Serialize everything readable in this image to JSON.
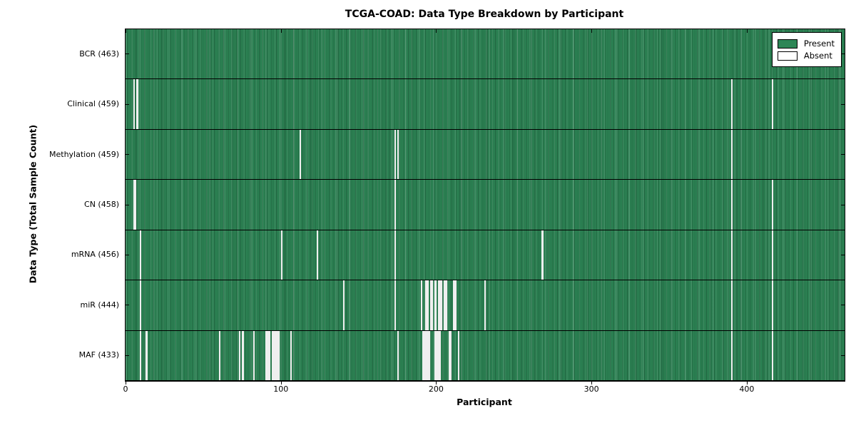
{
  "title": "TCGA-COAD: Data Type Breakdown by Participant",
  "chart_data": {
    "type": "heatmap",
    "title": "TCGA-COAD: Data Type Breakdown by Participant",
    "xlabel": "Participant",
    "ylabel": "Data Type (Total Sample Count)",
    "n_participants": 463,
    "x_ticks": [
      0,
      100,
      200,
      300,
      400
    ],
    "xlim": [
      0,
      463
    ],
    "grid": false,
    "legend_position": "upper right",
    "legend": {
      "present_label": "Present",
      "absent_label": "Absent"
    },
    "colors": {
      "present": "#2d8656",
      "absent": "#efefef",
      "frame": "#000000",
      "background": "#ffffff"
    },
    "rows": [
      {
        "label": "BCR",
        "total": 463,
        "display": "BCR (463)",
        "absent_participants": []
      },
      {
        "label": "Clinical",
        "total": 459,
        "display": "Clinical (459)",
        "absent_participants": [
          5,
          7,
          390,
          416
        ]
      },
      {
        "label": "Methylation",
        "total": 459,
        "display": "Methylation (459)",
        "absent_participants": [
          112,
          173,
          175,
          390
        ]
      },
      {
        "label": "CN",
        "total": 458,
        "display": "CN (458)",
        "absent_participants": [
          5,
          6,
          173,
          390,
          416
        ]
      },
      {
        "label": "mRNA",
        "total": 456,
        "display": "mRNA (456)",
        "absent_participants": [
          9,
          100,
          123,
          173,
          268,
          390,
          416
        ]
      },
      {
        "label": "miR",
        "total": 444,
        "display": "miR (444)",
        "absent_participants": [
          9,
          140,
          173,
          190,
          193,
          194,
          196,
          197,
          199,
          201,
          202,
          203,
          205,
          206,
          211,
          212,
          231,
          390,
          416
        ]
      },
      {
        "label": "MAF",
        "total": 433,
        "display": "MAF (433)",
        "absent_participants": [
          9,
          13,
          60,
          73,
          75,
          82,
          90,
          91,
          92,
          94,
          95,
          96,
          97,
          98,
          106,
          175,
          191,
          192,
          193,
          194,
          195,
          199,
          200,
          201,
          202,
          208,
          209,
          214,
          390,
          416
        ]
      }
    ]
  }
}
